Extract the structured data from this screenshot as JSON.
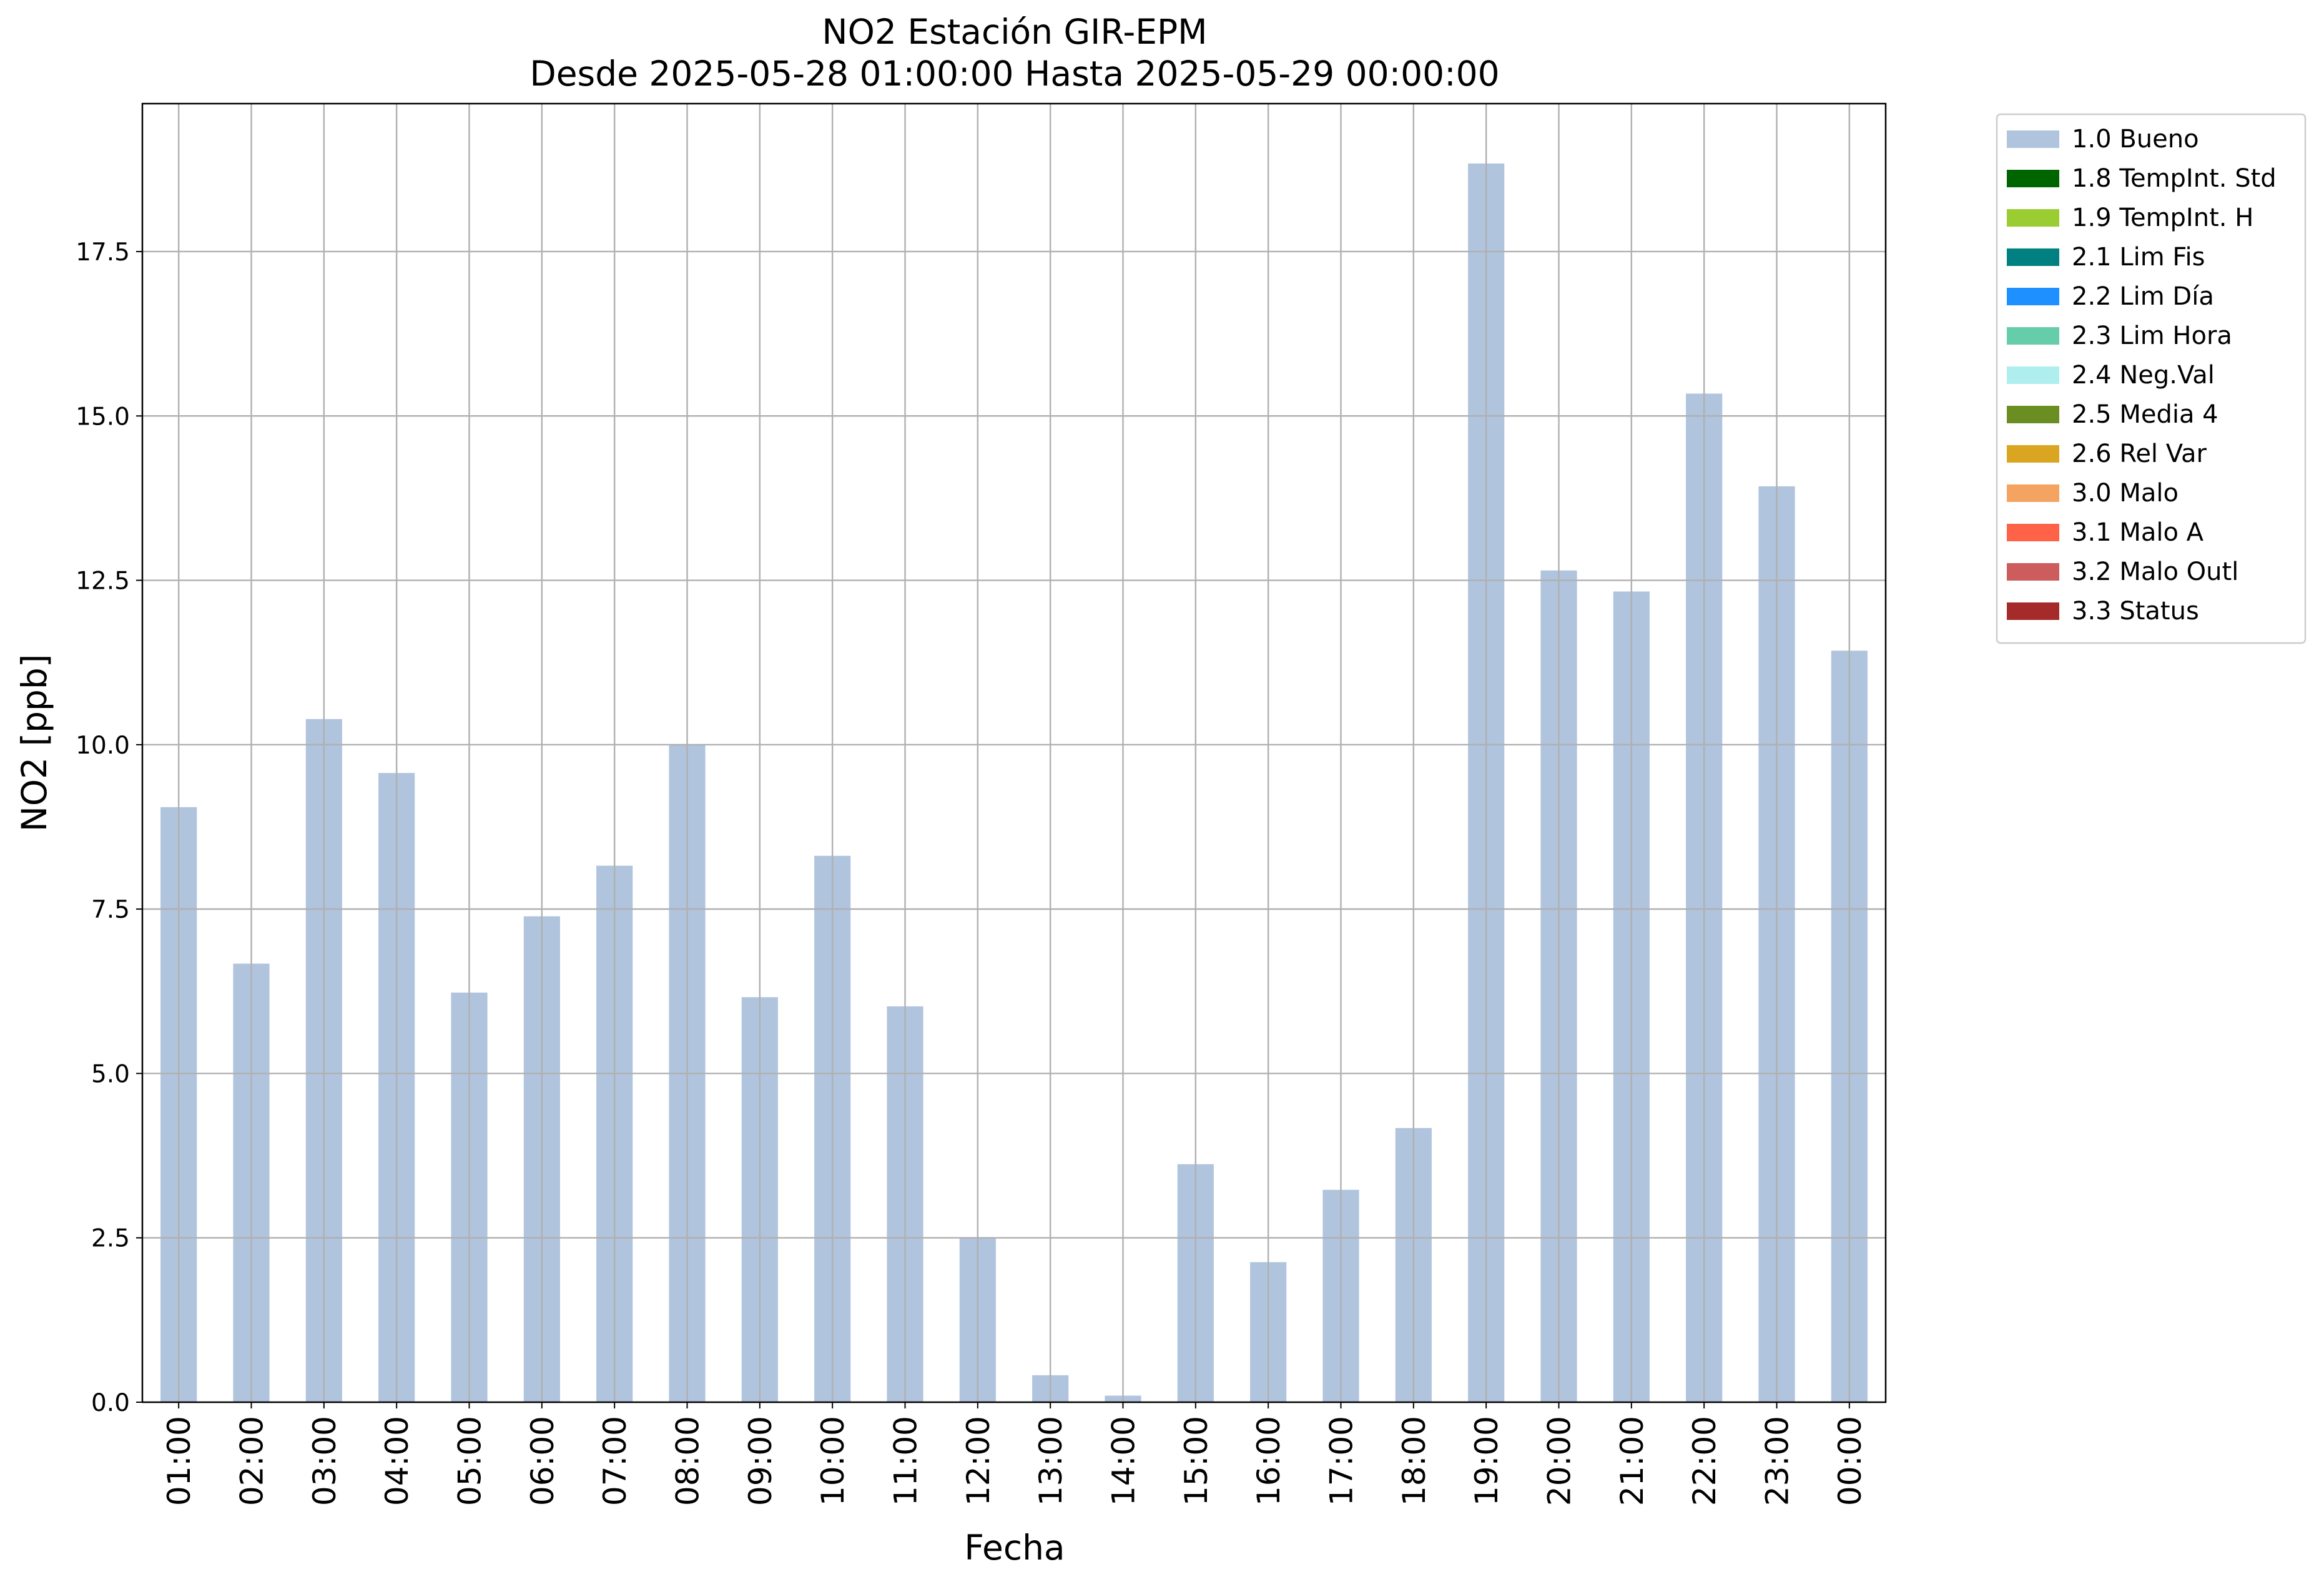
{
  "chart_data": {
    "type": "bar",
    "title": "NO2 Estación GIR-EPM",
    "subtitle": "Desde 2025-05-28 01:00:00 Hasta 2025-05-29 00:00:00",
    "xlabel": "Fecha",
    "ylabel": "NO2 [ppb]",
    "ylim": [
      0,
      19.75
    ],
    "yticks": [
      "0.0",
      "2.5",
      "5.0",
      "7.5",
      "10.0",
      "12.5",
      "15.0",
      "17.5"
    ],
    "grid": true,
    "legend_position": "outside-right-top",
    "categories": [
      "01:00",
      "02:00",
      "03:00",
      "04:00",
      "05:00",
      "06:00",
      "07:00",
      "08:00",
      "09:00",
      "10:00",
      "11:00",
      "12:00",
      "13:00",
      "14:00",
      "15:00",
      "16:00",
      "17:00",
      "18:00",
      "19:00",
      "20:00",
      "21:00",
      "22:00",
      "23:00",
      "00:00"
    ],
    "series": [
      {
        "name": "1.0 Bueno",
        "color": "#b0c4de",
        "values": [
          9.05,
          6.67,
          10.39,
          9.57,
          6.23,
          7.39,
          8.16,
          10.0,
          6.16,
          8.31,
          6.02,
          2.5,
          0.41,
          0.1,
          3.62,
          2.13,
          3.23,
          4.17,
          18.84,
          12.65,
          12.33,
          15.34,
          13.93,
          11.43
        ]
      }
    ],
    "legend": [
      {
        "label": "1.0 Bueno",
        "color": "#b0c4de"
      },
      {
        "label": "1.8 TempInt. Std",
        "color": "#006400"
      },
      {
        "label": "1.9 TempInt. H",
        "color": "#9acd32"
      },
      {
        "label": "2.1 Lim Fis",
        "color": "#008080"
      },
      {
        "label": "2.2 Lim Día",
        "color": "#1e90ff"
      },
      {
        "label": "2.3 Lim Hora",
        "color": "#66cdaa"
      },
      {
        "label": "2.4 Neg.Val",
        "color": "#afeeee"
      },
      {
        "label": "2.5 Media 4",
        "color": "#6b8e23"
      },
      {
        "label": "2.6 Rel Var",
        "color": "#daa520"
      },
      {
        "label": "3.0 Malo",
        "color": "#f4a460"
      },
      {
        "label": "3.1 Malo A",
        "color": "#ff6347"
      },
      {
        "label": "3.2 Malo Outl",
        "color": "#cd5c5c"
      },
      {
        "label": "3.3 Status",
        "color": "#a52a2a"
      }
    ]
  }
}
